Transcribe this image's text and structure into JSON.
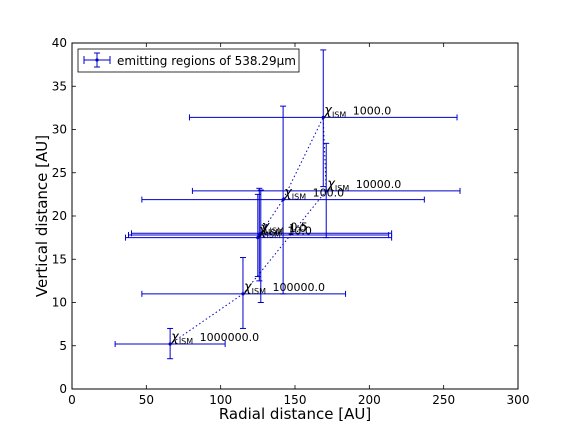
{
  "chart_data": {
    "type": "scatter",
    "xlabel": "Radial distance [AU]",
    "ylabel": "Vertical distance [AU]",
    "xlim": [
      0,
      300
    ],
    "ylim": [
      0,
      40
    ],
    "xticks": [
      0,
      50,
      100,
      150,
      200,
      250,
      300
    ],
    "yticks": [
      0,
      5,
      10,
      15,
      20,
      25,
      30,
      35,
      40
    ],
    "legend": {
      "placement": "top-left",
      "label": "emitting regions of 538.29μm"
    },
    "label_prefix": "χ",
    "label_subscript": "ISM",
    "series_color": "#0000cc",
    "points": [
      {
        "label": "1000000.0",
        "x": 66,
        "y": 5.2,
        "x_low": 29,
        "x_high": 103,
        "y_low": 3.5,
        "y_high": 7.0
      },
      {
        "label": "100000.0",
        "x": 115,
        "y": 11.0,
        "x_low": 47,
        "x_high": 184,
        "y_low": 7.0,
        "y_high": 15.2
      },
      {
        "label": "10.0",
        "x": 125,
        "y": 17.5,
        "x_low": 36,
        "x_high": 215,
        "y_low": 13.0,
        "y_high": 22.5
      },
      {
        "label": "1.0",
        "x": 126,
        "y": 17.8,
        "x_low": 38,
        "x_high": 213,
        "y_low": 12.5,
        "y_high": 23.2
      },
      {
        "label": "0.5",
        "x": 127,
        "y": 18.0,
        "x_low": 40,
        "x_high": 215,
        "y_low": 10.0,
        "y_high": 23.0
      },
      {
        "label": "100.0",
        "x": 142,
        "y": 21.9,
        "x_low": 47,
        "x_high": 237,
        "y_low": 11.0,
        "y_high": 32.7
      },
      {
        "label": "10000.0",
        "x": 171,
        "y": 22.9,
        "x_low": 81,
        "x_high": 261,
        "y_low": 17.5,
        "y_high": 28.4
      },
      {
        "label": "1000.0",
        "x": 169,
        "y": 31.4,
        "x_low": 79,
        "x_high": 259,
        "y_low": 23.4,
        "y_high": 39.2
      }
    ]
  }
}
